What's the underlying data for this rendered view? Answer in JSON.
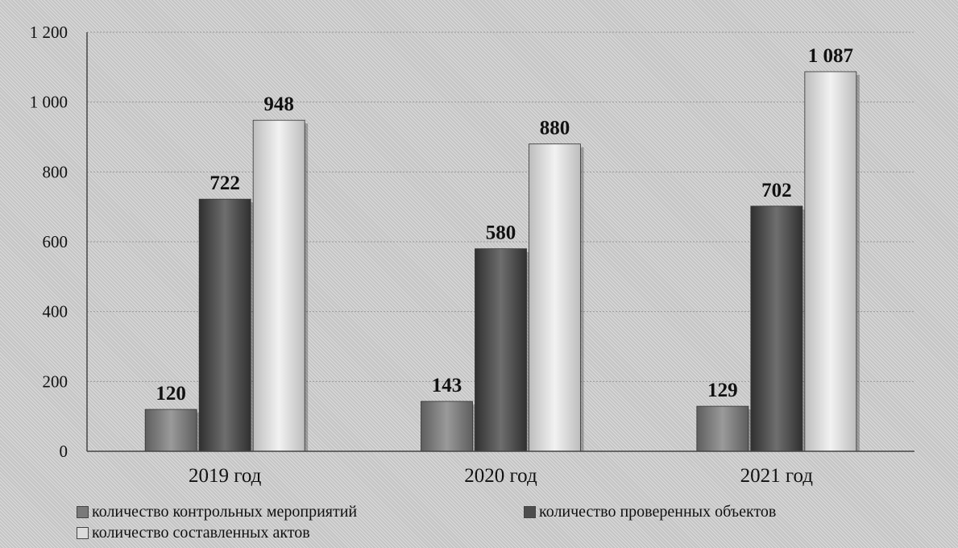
{
  "chart_data": {
    "type": "bar",
    "categories": [
      "2019 год",
      "2020 год",
      "2021 год"
    ],
    "series": [
      {
        "name": "количество контрольных мероприятий",
        "values": [
          120,
          143,
          129
        ],
        "labels": [
          "120",
          "143",
          "129"
        ],
        "color": "#7a7a7a"
      },
      {
        "name": "количество проверенных объектов",
        "values": [
          722,
          580,
          702
        ],
        "labels": [
          "722",
          "580",
          "702"
        ],
        "color": "#4d4d4d"
      },
      {
        "name": "количество составленных актов",
        "values": [
          948,
          880,
          1087
        ],
        "labels": [
          "948",
          "880",
          "1 087"
        ],
        "color": "#dcdcdc"
      }
    ],
    "yticks": [
      {
        "value": 0,
        "label": "0"
      },
      {
        "value": 200,
        "label": "200"
      },
      {
        "value": 400,
        "label": "400"
      },
      {
        "value": 600,
        "label": "600"
      },
      {
        "value": 800,
        "label": "800"
      },
      {
        "value": 1000,
        "label": "1 000"
      },
      {
        "value": 1200,
        "label": "1 200"
      }
    ],
    "ylim": [
      0,
      1200
    ],
    "grid": true,
    "legend_position": "bottom",
    "title": "",
    "xlabel": "",
    "ylabel": ""
  }
}
